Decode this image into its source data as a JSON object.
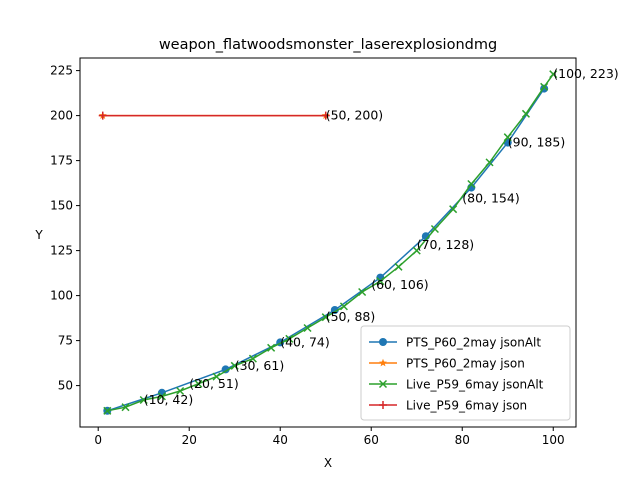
{
  "chart_data": {
    "type": "line",
    "title": "weapon_flatwoodsmonster_laserexplosiondmg",
    "xlabel": "X",
    "ylabel": "Y",
    "xlim": [
      -4,
      105
    ],
    "ylim": [
      27,
      232
    ],
    "xticks": [
      0,
      20,
      40,
      60,
      80,
      100
    ],
    "yticks": [
      50,
      75,
      100,
      125,
      150,
      175,
      200,
      225
    ],
    "grid": false,
    "legend_position": "lower-right",
    "series": [
      {
        "name": "PTS_P60_2may jsonAlt",
        "color": "#1f77b4",
        "marker": "circle",
        "x": [
          2,
          14,
          28,
          40,
          52,
          62,
          72,
          82,
          90,
          98
        ],
        "y": [
          36,
          46,
          59,
          74,
          92,
          110,
          133,
          160,
          185,
          215
        ]
      },
      {
        "name": "PTS_P60_2may json",
        "color": "#ff7f0e",
        "marker": "star",
        "x": [
          1,
          50
        ],
        "y": [
          200,
          200
        ]
      },
      {
        "name": "Live_P59_6may jsonAlt",
        "color": "#2ca02c",
        "marker": "x",
        "x": [
          2,
          6,
          10,
          14,
          18,
          22,
          26,
          30,
          34,
          38,
          42,
          46,
          50,
          54,
          58,
          62,
          66,
          70,
          74,
          78,
          82,
          86,
          90,
          94,
          98,
          100
        ],
        "y": [
          36,
          38,
          42,
          44,
          47,
          51,
          55,
          61,
          65,
          71,
          76,
          82,
          88,
          94,
          102,
          108,
          116,
          125,
          137,
          148,
          162,
          174,
          188,
          201,
          216,
          223
        ]
      },
      {
        "name": "Live_P59_6may json",
        "color": "#d62728",
        "marker": "plus",
        "x": [
          1,
          50
        ],
        "y": [
          200,
          200
        ]
      }
    ],
    "annotations": [
      {
        "text": "(10, 42)",
        "x": 10,
        "y": 42
      },
      {
        "text": "(20, 51)",
        "x": 20,
        "y": 51
      },
      {
        "text": "(30, 61)",
        "x": 30,
        "y": 61
      },
      {
        "text": "(40, 74)",
        "x": 40,
        "y": 74
      },
      {
        "text": "(50, 88)",
        "x": 50,
        "y": 88
      },
      {
        "text": "(60, 106)",
        "x": 60,
        "y": 106
      },
      {
        "text": "(70, 128)",
        "x": 70,
        "y": 128
      },
      {
        "text": "(80, 154)",
        "x": 80,
        "y": 154
      },
      {
        "text": "(90, 185)",
        "x": 90,
        "y": 185
      },
      {
        "text": "(100, 223)",
        "x": 100,
        "y": 223
      },
      {
        "text": "(50, 200)",
        "x": 50,
        "y": 200
      }
    ]
  }
}
